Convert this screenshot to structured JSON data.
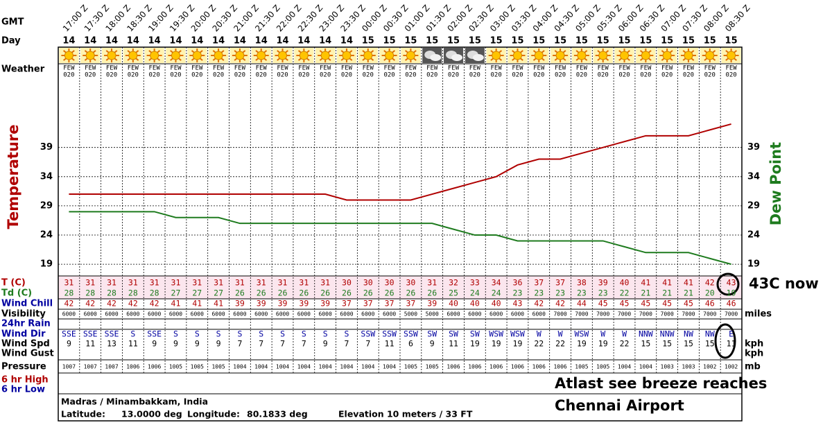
{
  "chart_data": {
    "type": "line",
    "x": [
      "17:00 Z",
      "17:30 Z",
      "18:00 Z",
      "18:30 Z",
      "19:00 Z",
      "19:30 Z",
      "20:00 Z",
      "20:30 Z",
      "21:00 Z",
      "21:30 Z",
      "22:00 Z",
      "22:30 Z",
      "23:00 Z",
      "23:30 Z",
      "00:00 Z",
      "00:30 Z",
      "01:00 Z",
      "01:30 Z",
      "02:00 Z",
      "02:30 Z",
      "03:00 Z",
      "03:30 Z",
      "04:00 Z",
      "04:30 Z",
      "05:00 Z",
      "05:30 Z",
      "06:00 Z",
      "06:30 Z",
      "07:00 Z",
      "07:30 Z",
      "08:00 Z",
      "08:30 Z"
    ],
    "series": [
      {
        "name": "Temperature",
        "color": "#b00000",
        "values": [
          31,
          31,
          31,
          31,
          31,
          31,
          31,
          31,
          31,
          31,
          31,
          31,
          31,
          30,
          30,
          30,
          30,
          31,
          32,
          33,
          34,
          36,
          37,
          37,
          38,
          39,
          40,
          41,
          41,
          41,
          42,
          43
        ]
      },
      {
        "name": "Dew Point",
        "color": "#1e7b1e",
        "values": [
          28,
          28,
          28,
          28,
          28,
          27,
          27,
          27,
          26,
          26,
          26,
          26,
          26,
          26,
          26,
          26,
          26,
          26,
          25,
          24,
          24,
          23,
          23,
          23,
          23,
          23,
          22,
          21,
          21,
          21,
          20,
          19
        ]
      }
    ],
    "ylim": [
      17,
      50
    ],
    "yticks": [
      19,
      24,
      29,
      34,
      39
    ],
    "grid": true
  },
  "header": {
    "gmt": "GMT",
    "day": "Day",
    "weather": "Weather"
  },
  "days": [
    14,
    14,
    14,
    14,
    14,
    14,
    14,
    14,
    14,
    14,
    14,
    14,
    14,
    14,
    15,
    15,
    15,
    15,
    15,
    15,
    15,
    15,
    15,
    15,
    15,
    15,
    15,
    15,
    15,
    15,
    15,
    15
  ],
  "weather": [
    {
      "icon": "sunny",
      "cover": "FEW",
      "height": "020"
    },
    {
      "icon": "sunny",
      "cover": "FEW",
      "height": "020"
    },
    {
      "icon": "sunny",
      "cover": "FEW",
      "height": "020"
    },
    {
      "icon": "sunny",
      "cover": "FEW",
      "height": "020"
    },
    {
      "icon": "sunny",
      "cover": "FEW",
      "height": "020"
    },
    {
      "icon": "sunny",
      "cover": "FEW",
      "height": "020"
    },
    {
      "icon": "sunny",
      "cover": "FEW",
      "height": "020"
    },
    {
      "icon": "sunny",
      "cover": "FEW",
      "height": "020"
    },
    {
      "icon": "sunny",
      "cover": "FEW",
      "height": "020"
    },
    {
      "icon": "sunny",
      "cover": "FEW",
      "height": "020"
    },
    {
      "icon": "sunny",
      "cover": "FEW",
      "height": "020"
    },
    {
      "icon": "sunny",
      "cover": "FEW",
      "height": "020"
    },
    {
      "icon": "sunny",
      "cover": "FEW",
      "height": "020"
    },
    {
      "icon": "sunny",
      "cover": "FEW",
      "height": "020"
    },
    {
      "icon": "sunny",
      "cover": "FEW",
      "height": "020"
    },
    {
      "icon": "sunny",
      "cover": "FEW",
      "height": "020"
    },
    {
      "icon": "sunny",
      "cover": "FEW",
      "height": "020"
    },
    {
      "icon": "cloudy",
      "cover": "FEW",
      "height": "020"
    },
    {
      "icon": "cloudy",
      "cover": "FEW",
      "height": "020"
    },
    {
      "icon": "cloudy",
      "cover": "FEW",
      "height": "020"
    },
    {
      "icon": "sunny",
      "cover": "FEW",
      "height": "020"
    },
    {
      "icon": "sunny",
      "cover": "FEW",
      "height": "020"
    },
    {
      "icon": "sunny",
      "cover": "FEW",
      "height": "020"
    },
    {
      "icon": "sunny",
      "cover": "FEW",
      "height": "020"
    },
    {
      "icon": "sunny",
      "cover": "FEW",
      "height": "020"
    },
    {
      "icon": "sunny",
      "cover": "FEW",
      "height": "020"
    },
    {
      "icon": "sunny",
      "cover": "FEW",
      "height": "020"
    },
    {
      "icon": "sunny",
      "cover": "FEW",
      "height": "020"
    },
    {
      "icon": "sunny",
      "cover": "FEW",
      "height": "020"
    },
    {
      "icon": "sunny",
      "cover": "FEW",
      "height": "020"
    },
    {
      "icon": "sunny",
      "cover": "FEW",
      "height": "020"
    },
    {
      "icon": "sunny",
      "cover": "FEW",
      "height": "020"
    }
  ],
  "table": {
    "labels": {
      "t": "T (C)",
      "td": "Td (C)",
      "wind_chill": "Wind Chill",
      "visibility": "Visibility",
      "rain": "24hr Rain",
      "wind_dir": "Wind Dir",
      "wind_speed": "Wind Spd",
      "wind_gust": "Wind Gust",
      "pressure": "Pressure",
      "high": "6 hr High",
      "low": "6 hr Low"
    },
    "wind_chill": [
      42,
      42,
      42,
      42,
      42,
      41,
      41,
      41,
      39,
      39,
      39,
      39,
      39,
      37,
      37,
      37,
      37,
      39,
      40,
      40,
      40,
      43,
      42,
      42,
      44,
      45,
      45,
      45,
      45,
      45,
      46,
      46
    ],
    "visibility": [
      6000,
      6000,
      6000,
      6000,
      6000,
      6000,
      6000,
      6000,
      6000,
      6000,
      6000,
      6000,
      6000,
      6000,
      6000,
      6000,
      5000,
      5000,
      6000,
      6000,
      6000,
      6000,
      6000,
      7000,
      7000,
      7000,
      7000,
      7000,
      7000,
      7000,
      7000,
      7000
    ],
    "wind_dir": [
      "SSE",
      "SSE",
      "SSE",
      "S",
      "SSE",
      "S",
      "S",
      "S",
      "S",
      "S",
      "S",
      "S",
      "S",
      "S",
      "SSW",
      "SSW",
      "SSW",
      "SW",
      "SW",
      "SW",
      "WSW",
      "WSW",
      "W",
      "W",
      "WSW",
      "W",
      "W",
      "NNW",
      "NNW",
      "NW",
      "NW",
      "E"
    ],
    "wind_speed": [
      9,
      11,
      13,
      11,
      9,
      9,
      9,
      9,
      7,
      7,
      7,
      7,
      9,
      7,
      7,
      11,
      6,
      9,
      11,
      19,
      19,
      19,
      22,
      22,
      19,
      19,
      22,
      15,
      15,
      15,
      15,
      11
    ],
    "pressure": [
      1007,
      1007,
      1007,
      1006,
      1006,
      1005,
      1005,
      1005,
      1004,
      1004,
      1004,
      1004,
      1004,
      1004,
      1004,
      1004,
      1005,
      1005,
      1006,
      1006,
      1006,
      1006,
      1006,
      1006,
      1005,
      1005,
      1004,
      1004,
      1003,
      1003,
      1002,
      1002
    ],
    "units": {
      "visibility": "miles",
      "wind_speed": "kph",
      "wind_gust": "kph",
      "pressure": "mb"
    }
  },
  "footer": {
    "station": "Madras / Minambakkam, India",
    "lat_label": "Latitude:",
    "lat": "13.0000 deg",
    "lon_label": "Longitude:",
    "lon": "80.1833 deg",
    "elevation": "Elevation 10 meters / 33 FT"
  },
  "annotations": {
    "now": "43C now",
    "line1": "Atlast see breeze reaches",
    "line2": "Chennai Airport"
  }
}
